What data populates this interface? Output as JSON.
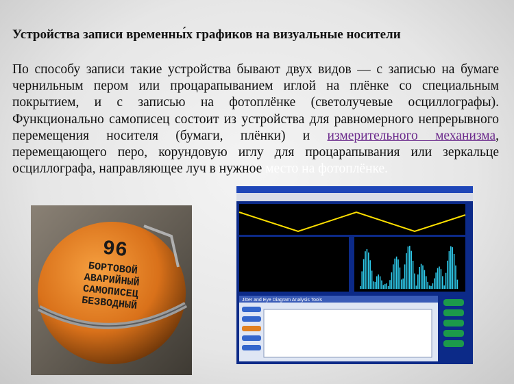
{
  "header": {
    "title": "Устройства записи временны́х графиков на визуальные носители"
  },
  "body": {
    "text_before": "По способу записи такие устройства бывают двух видов — с записью на бумаге чернильным пером или процарапыванием иглой на плёнке со специальным покрытием, и с записью на фотоплёнке (светолучевые осциллографы). Функционально самописец состоит из устройства для равномерного непрерывного перемещения носителя (бумаги, плёнки) и ",
    "link": "измерительного механизма",
    "text_after": ", перемещающего перо, корундовую иглу для процарапывания или зеркальце осциллографа, направляющее луч в нужное ",
    "text_faded": "место на фотоплёнке."
  },
  "photo": {
    "number": "96",
    "lines": [
      "БОРТОВОЙ",
      "АВАРИЙНЫЙ",
      "САМОПИСЕЦ",
      "БЕЗВОДНЫЙ"
    ]
  },
  "screenshot": {
    "panel_title": "Jitter and Eye Diagram Analysis Tools"
  }
}
